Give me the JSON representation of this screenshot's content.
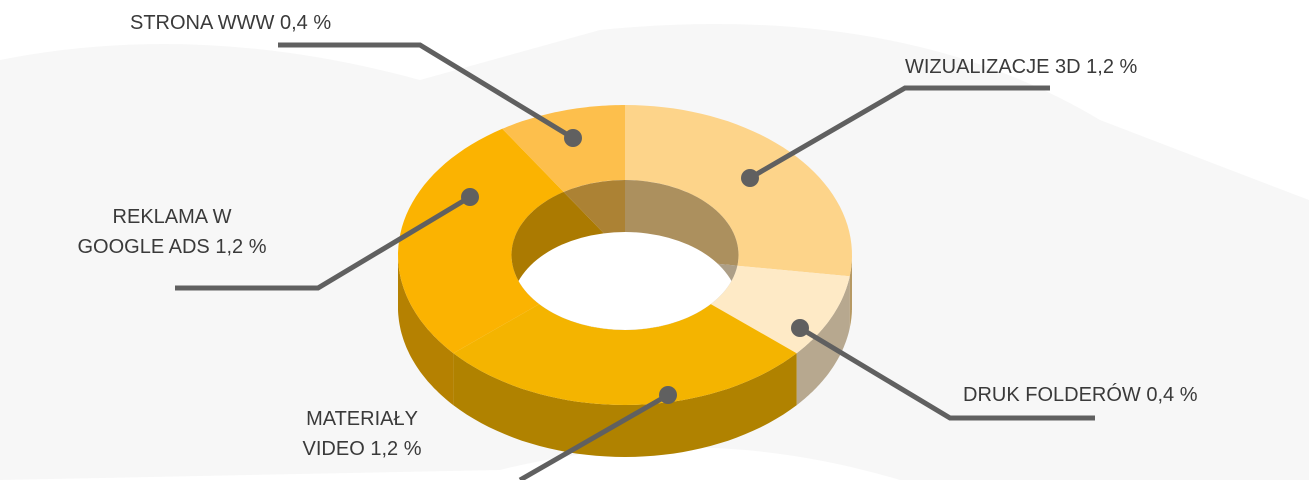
{
  "chart_data": {
    "type": "donut3d",
    "categories": [
      "WIZUALIZACJE 3D",
      "DRUK FOLDERÓW",
      "MATERIAŁY VIDEO",
      "REKLAMA W GOOGLE ADS",
      "STRONA WWW"
    ],
    "values": [
      1.2,
      0.4,
      1.2,
      1.2,
      0.4
    ],
    "value_labels": [
      "1,2 %",
      "0,4 %",
      "1,2 %",
      "1,2 %",
      "0,4 %"
    ],
    "colors": [
      "#fdd48a",
      "#feeac6",
      "#f4b400",
      "#fbb301",
      "#fdbf4c"
    ]
  }
}
